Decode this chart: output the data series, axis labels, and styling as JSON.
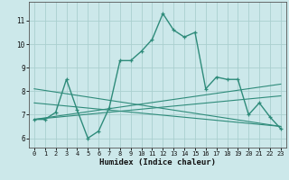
{
  "xlabel": "Humidex (Indice chaleur)",
  "x_data": [
    0,
    1,
    2,
    3,
    4,
    5,
    6,
    7,
    8,
    9,
    10,
    11,
    12,
    13,
    14,
    15,
    16,
    17,
    18,
    19,
    20,
    21,
    22,
    23
  ],
  "main_line": [
    6.8,
    6.8,
    7.1,
    8.5,
    7.2,
    6.0,
    6.3,
    7.3,
    9.3,
    9.3,
    9.7,
    10.2,
    11.3,
    10.6,
    10.3,
    10.5,
    8.1,
    8.6,
    8.5,
    8.5,
    7.0,
    7.5,
    6.9,
    6.4
  ],
  "trend_lines": [
    {
      "start_x": 0,
      "start_y": 6.8,
      "end_x": 23,
      "end_y": 8.3
    },
    {
      "start_x": 0,
      "start_y": 6.8,
      "end_x": 23,
      "end_y": 7.8
    },
    {
      "start_x": 0,
      "start_y": 7.5,
      "end_x": 23,
      "end_y": 6.5
    },
    {
      "start_x": 0,
      "start_y": 8.1,
      "end_x": 23,
      "end_y": 6.5
    }
  ],
  "line_color": "#2e8b7a",
  "bg_color": "#cce8ea",
  "grid_color": "#aacfcf",
  "ylim": [
    5.6,
    11.8
  ],
  "xlim": [
    -0.5,
    23.5
  ],
  "yticks": [
    6,
    7,
    8,
    9,
    10,
    11
  ],
  "xticks": [
    0,
    1,
    2,
    3,
    4,
    5,
    6,
    7,
    8,
    9,
    10,
    11,
    12,
    13,
    14,
    15,
    16,
    17,
    18,
    19,
    20,
    21,
    22,
    23
  ]
}
